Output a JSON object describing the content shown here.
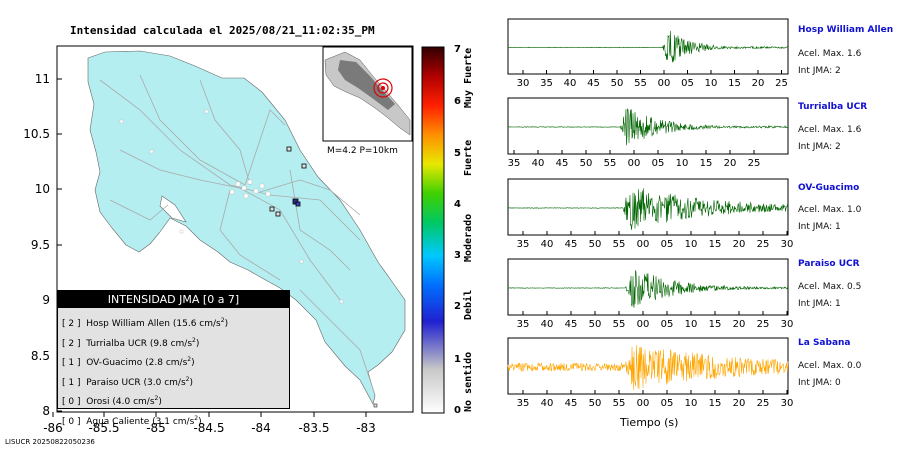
{
  "map": {
    "title": "Intensidad calculada el 2025/08/21_11:02:35_PM",
    "lat_ticks": [
      "11",
      "10.5",
      "10",
      "9.5",
      "9",
      "8.5",
      "8"
    ],
    "lon_ticks": [
      "-86",
      "-85.5",
      "-85",
      "-84.5",
      "-84",
      "-83.5",
      "-83"
    ],
    "inset_label": "M=4.2 P=10km",
    "credit": "LISUCR 20250822050236",
    "colors": {
      "land": "#b4eef0",
      "sea": "#ffffff",
      "roads": "#aaaaaa"
    }
  },
  "legend": {
    "title": "INTENSIDAD JMA [0 a 7]",
    "rows": [
      {
        "level": "[ 2 ]",
        "station": "Hosp William Allen",
        "accel": "(15.6 cm/s",
        "exp": "2",
        "close": ")"
      },
      {
        "level": "[ 2 ]",
        "station": "Turrialba UCR",
        "accel": "(9.8 cm/s",
        "exp": "2",
        "close": ")"
      },
      {
        "level": "[ 1 ]",
        "station": "OV-Guacimo",
        "accel": "(2.8 cm/s",
        "exp": "2",
        "close": ")"
      },
      {
        "level": "[ 1 ]",
        "station": "Paraiso UCR",
        "accel": "(3.0 cm/s",
        "exp": "2",
        "close": ")"
      },
      {
        "level": "[ 0 ]",
        "station": "Orosi",
        "accel": "(4.0 cm/s",
        "exp": "2",
        "close": ")"
      },
      {
        "level": "[ 0 ]",
        "station": "Agua Caliente",
        "accel": "(3.1 cm/s",
        "exp": "2",
        "close": ")"
      }
    ]
  },
  "colorbar": {
    "levels": [
      "0",
      "1",
      "2",
      "3",
      "4",
      "5",
      "6",
      "7"
    ],
    "categories": [
      "No sentido",
      "Debil",
      "Moderado",
      "Fuerte",
      "Muy Fuerte"
    ]
  },
  "seismograms": [
    {
      "station": "Hosp William Allen",
      "accel_text": "Acel. Max. 1.6",
      "jma_text": "Int JMA: 2",
      "ticks": [
        "30",
        "35",
        "40",
        "45",
        "50",
        "55",
        "00",
        "05",
        "10",
        "15",
        "20",
        "25"
      ],
      "color": "#006400"
    },
    {
      "station": "Turrialba UCR",
      "accel_text": "Acel. Max. 1.6",
      "jma_text": "Int JMA: 2",
      "ticks": [
        "35",
        "40",
        "45",
        "50",
        "55",
        "00",
        "05",
        "10",
        "15",
        "20",
        "25"
      ],
      "color": "#006400"
    },
    {
      "station": "OV-Guacimo",
      "accel_text": "Acel. Max. 1.0",
      "jma_text": "Int JMA: 1",
      "ticks": [
        "35",
        "40",
        "45",
        "50",
        "55",
        "00",
        "05",
        "10",
        "15",
        "20",
        "25",
        "30"
      ],
      "color": "#006400"
    },
    {
      "station": "Paraiso UCR",
      "accel_text": "Acel. Max. 0.5",
      "jma_text": "Int JMA: 1",
      "ticks": [
        "35",
        "40",
        "45",
        "50",
        "55",
        "00",
        "05",
        "10",
        "15",
        "20",
        "25",
        "30"
      ],
      "color": "#006400"
    },
    {
      "station": "La Sabana",
      "accel_text": "Acel. Max. 0.0",
      "jma_text": "Int JMA: 0",
      "ticks": [
        "35",
        "40",
        "45",
        "50",
        "55",
        "00",
        "05",
        "10",
        "15",
        "20",
        "25",
        "30"
      ],
      "color": "#ffa500"
    }
  ],
  "time_axis_label": "Tiempo (s)"
}
